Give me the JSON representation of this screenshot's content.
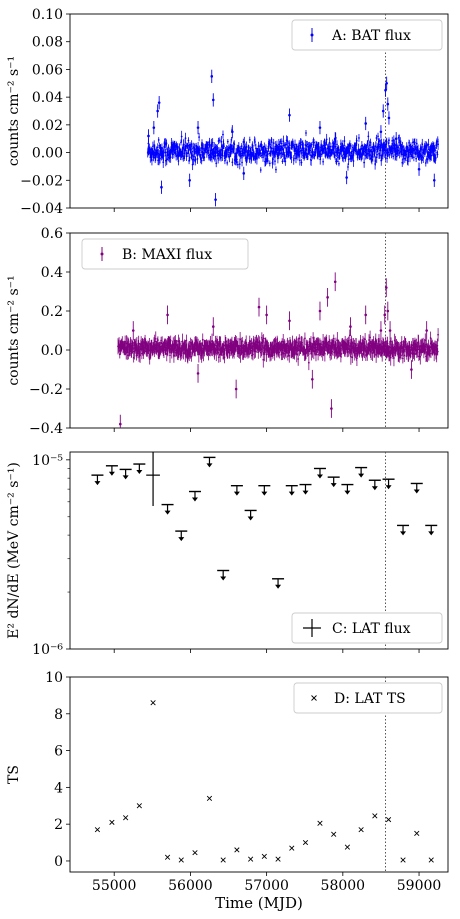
{
  "chart_data": [
    {
      "type": "scatter",
      "panel": "A",
      "ylabel": "counts cm⁻² s⁻¹",
      "ylim": [
        -0.04,
        0.1
      ],
      "yticks": [
        -0.04,
        -0.02,
        0.0,
        0.02,
        0.04,
        0.06,
        0.08,
        0.1
      ],
      "ytick_labels": [
        "−0.04",
        "−0.02",
        "0.00",
        "0.02",
        "0.04",
        "0.06",
        "0.08",
        "0.10"
      ],
      "legend": "A: BAT flux",
      "legend_position": "top-right",
      "color": "#0000ff",
      "series": [
        {
          "x_range": [
            55440,
            59250
          ],
          "y_center": 0.001,
          "y_scatter": 0.004,
          "error": 0.003,
          "outliers": [
            {
              "x": 55450,
              "y": 0.012
            },
            {
              "x": 55520,
              "y": 0.018
            },
            {
              "x": 55570,
              "y": 0.03
            },
            {
              "x": 55590,
              "y": 0.036
            },
            {
              "x": 55620,
              "y": -0.025
            },
            {
              "x": 55990,
              "y": -0.02
            },
            {
              "x": 56280,
              "y": 0.055
            },
            {
              "x": 56300,
              "y": 0.038
            },
            {
              "x": 56330,
              "y": -0.034
            },
            {
              "x": 56100,
              "y": 0.018
            },
            {
              "x": 56550,
              "y": 0.015
            },
            {
              "x": 56700,
              "y": -0.015
            },
            {
              "x": 57300,
              "y": 0.027
            },
            {
              "x": 57700,
              "y": 0.018
            },
            {
              "x": 57900,
              "y": 0.01
            },
            {
              "x": 58050,
              "y": -0.018
            },
            {
              "x": 58300,
              "y": 0.021
            },
            {
              "x": 58500,
              "y": 0.015
            },
            {
              "x": 58530,
              "y": 0.03
            },
            {
              "x": 58560,
              "y": 0.045
            },
            {
              "x": 58575,
              "y": 0.05
            },
            {
              "x": 58590,
              "y": 0.035
            },
            {
              "x": 58605,
              "y": 0.025
            },
            {
              "x": 58700,
              "y": 0.01
            },
            {
              "x": 59000,
              "y": -0.012
            },
            {
              "x": 59200,
              "y": -0.02
            }
          ]
        }
      ]
    },
    {
      "type": "scatter",
      "panel": "B",
      "ylabel": "counts cm⁻² s⁻¹",
      "ylim": [
        -0.4,
        0.6
      ],
      "yticks": [
        -0.4,
        -0.2,
        0.0,
        0.2,
        0.4,
        0.6
      ],
      "ytick_labels": [
        "−0.4",
        "−0.2",
        "0.0",
        "0.2",
        "0.4",
        "0.6"
      ],
      "legend": "B: MAXI flux",
      "legend_position": "top-left",
      "color": "#800080",
      "series": [
        {
          "x_range": [
            55050,
            59250
          ],
          "y_center": 0.01,
          "y_scatter": 0.02,
          "error": 0.03,
          "outliers": [
            {
              "x": 55080,
              "y": -0.38
            },
            {
              "x": 55250,
              "y": 0.1
            },
            {
              "x": 55700,
              "y": 0.18
            },
            {
              "x": 56100,
              "y": -0.12
            },
            {
              "x": 56300,
              "y": 0.12
            },
            {
              "x": 56600,
              "y": -0.2
            },
            {
              "x": 56900,
              "y": 0.22
            },
            {
              "x": 57000,
              "y": 0.18
            },
            {
              "x": 57300,
              "y": 0.15
            },
            {
              "x": 57600,
              "y": -0.15
            },
            {
              "x": 57700,
              "y": 0.2
            },
            {
              "x": 57800,
              "y": 0.27
            },
            {
              "x": 57850,
              "y": -0.3
            },
            {
              "x": 57900,
              "y": 0.35
            },
            {
              "x": 58100,
              "y": 0.12
            },
            {
              "x": 58300,
              "y": 0.18
            },
            {
              "x": 58500,
              "y": 0.1
            },
            {
              "x": 58550,
              "y": 0.18
            },
            {
              "x": 58570,
              "y": 0.32
            },
            {
              "x": 58590,
              "y": 0.2
            },
            {
              "x": 58620,
              "y": 0.1
            },
            {
              "x": 58900,
              "y": -0.1
            },
            {
              "x": 59100,
              "y": 0.1
            }
          ]
        }
      ]
    },
    {
      "type": "scatter",
      "panel": "C",
      "ylabel": "E² dN/dE (MeV cm⁻² s⁻¹)",
      "yscale": "log",
      "ylim": [
        1e-06,
        1.1e-05
      ],
      "yticks": [
        1e-06,
        1e-05
      ],
      "ytick_labels": [
        "10⁻⁶",
        "10⁻⁵"
      ],
      "legend": "C: LAT flux",
      "legend_position": "bottom-right",
      "upper_limits": [
        {
          "x": 54780,
          "y": 8.3e-06
        },
        {
          "x": 54970,
          "y": 9.3e-06
        },
        {
          "x": 55150,
          "y": 8.9e-06
        },
        {
          "x": 55330,
          "y": 9.5e-06
        },
        {
          "x": 55700,
          "y": 5.8e-06
        },
        {
          "x": 55880,
          "y": 4.2e-06
        },
        {
          "x": 56060,
          "y": 6.8e-06
        },
        {
          "x": 56250,
          "y": 1.03e-05
        },
        {
          "x": 56430,
          "y": 2.6e-06
        },
        {
          "x": 56610,
          "y": 7.3e-06
        },
        {
          "x": 56790,
          "y": 5.4e-06
        },
        {
          "x": 56970,
          "y": 7.3e-06
        },
        {
          "x": 57150,
          "y": 2.35e-06
        },
        {
          "x": 57330,
          "y": 7.3e-06
        },
        {
          "x": 57510,
          "y": 7.4e-06
        },
        {
          "x": 57700,
          "y": 9e-06
        },
        {
          "x": 57880,
          "y": 8.1e-06
        },
        {
          "x": 58060,
          "y": 7.4e-06
        },
        {
          "x": 58240,
          "y": 9.1e-06
        },
        {
          "x": 58420,
          "y": 7.8e-06
        },
        {
          "x": 58600,
          "y": 7.9e-06
        },
        {
          "x": 58790,
          "y": 4.5e-06
        },
        {
          "x": 58970,
          "y": 7.5e-06
        },
        {
          "x": 59160,
          "y": 4.5e-06
        }
      ],
      "detections": [
        {
          "x": 55510,
          "y": 8.3e-06,
          "xerr": 90,
          "ylo": 5.7e-06,
          "yhi": 1.15e-05
        }
      ]
    },
    {
      "type": "scatter",
      "panel": "D",
      "ylabel": "TS",
      "xlabel": "Time (MJD)",
      "ylim": [
        -0.6,
        10
      ],
      "yticks": [
        0,
        2,
        4,
        6,
        8,
        10
      ],
      "ytick_labels": [
        "0",
        "2",
        "4",
        "6",
        "8",
        "10"
      ],
      "xlim": [
        54420,
        59380
      ],
      "xticks": [
        55000,
        56000,
        57000,
        58000,
        59000
      ],
      "xtick_labels": [
        "55000",
        "56000",
        "57000",
        "58000",
        "59000"
      ],
      "legend": "D: LAT TS",
      "legend_position": "top-right",
      "marker": "x",
      "x": [
        54780,
        54970,
        55150,
        55330,
        55510,
        55700,
        55880,
        56060,
        56250,
        56430,
        56610,
        56790,
        56970,
        57150,
        57330,
        57510,
        57700,
        57880,
        58060,
        58240,
        58420,
        58600,
        58790,
        58970,
        59160
      ],
      "y": [
        1.7,
        2.1,
        2.35,
        3.0,
        8.6,
        0.2,
        0.05,
        0.45,
        3.4,
        0.05,
        0.6,
        0.1,
        0.25,
        0.1,
        0.7,
        1.0,
        2.05,
        1.45,
        0.75,
        1.7,
        2.45,
        2.25,
        0.05,
        1.5,
        0.05
      ]
    }
  ],
  "shared_x": {
    "xlim": [
      54420,
      59380
    ],
    "xticks": [
      55000,
      56000,
      57000,
      58000,
      59000
    ]
  },
  "vline_x": 58560
}
